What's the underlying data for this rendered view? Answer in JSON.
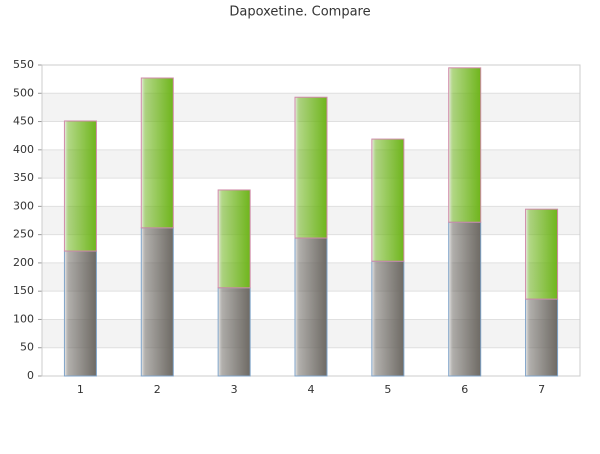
{
  "chart_data": {
    "type": "stacked_bar",
    "title": "Dapoxetine. Compare",
    "categories": [
      "1",
      "2",
      "3",
      "4",
      "5",
      "6",
      "7"
    ],
    "series": [
      {
        "color": "#6e6a64",
        "values": [
          221,
          262,
          156,
          244,
          203,
          272,
          136
        ]
      },
      {
        "color": "#6fb51c",
        "values": [
          230,
          265,
          173,
          249,
          216,
          273,
          159
        ]
      }
    ],
    "ylim": [
      0,
      550
    ],
    "yticks": [
      0,
      50,
      100,
      150,
      200,
      250,
      300,
      350,
      400,
      450,
      500,
      550
    ],
    "grid": true
  }
}
